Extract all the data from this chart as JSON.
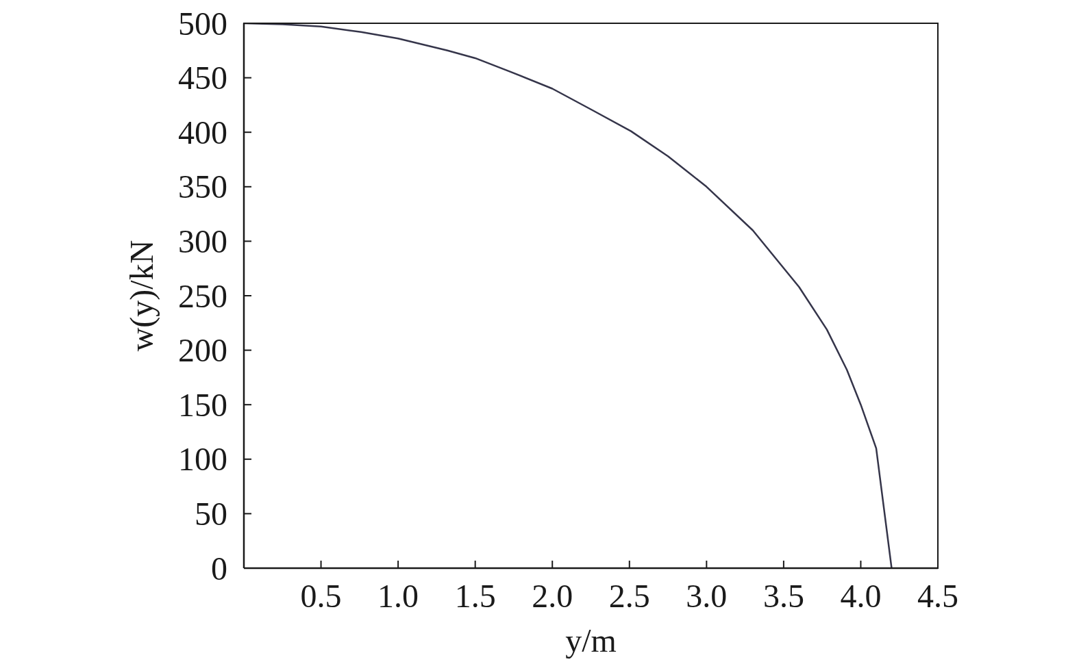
{
  "chart_data": {
    "type": "line",
    "x": [
      0,
      0.25,
      0.5,
      0.76,
      1.0,
      1.32,
      1.5,
      1.72,
      2.0,
      2.25,
      2.51,
      2.75,
      3.0,
      3.3,
      3.6,
      3.78,
      3.91,
      4.0,
      4.1,
      4.2
    ],
    "values": [
      500,
      499,
      497,
      492,
      486,
      475,
      468,
      456,
      440,
      421,
      401,
      378,
      350,
      310,
      258,
      219,
      182,
      150,
      110,
      0
    ],
    "color": "#35354a",
    "xlabel": "y/m",
    "ylabel": "w(y)/kN",
    "xlim": [
      0,
      4.5
    ],
    "ylim": [
      0,
      500
    ],
    "xticks": [
      0.5,
      {
        "value": 1,
        "label": "1.0"
      },
      1.5,
      {
        "value": 2,
        "label": "2.0"
      },
      2.5,
      {
        "value": 3,
        "label": "3.0"
      },
      3.5,
      {
        "value": 4,
        "label": "4.0"
      },
      4.5
    ],
    "yticks": [
      0,
      50,
      100,
      150,
      200,
      250,
      300,
      350,
      400,
      450,
      500
    ]
  }
}
